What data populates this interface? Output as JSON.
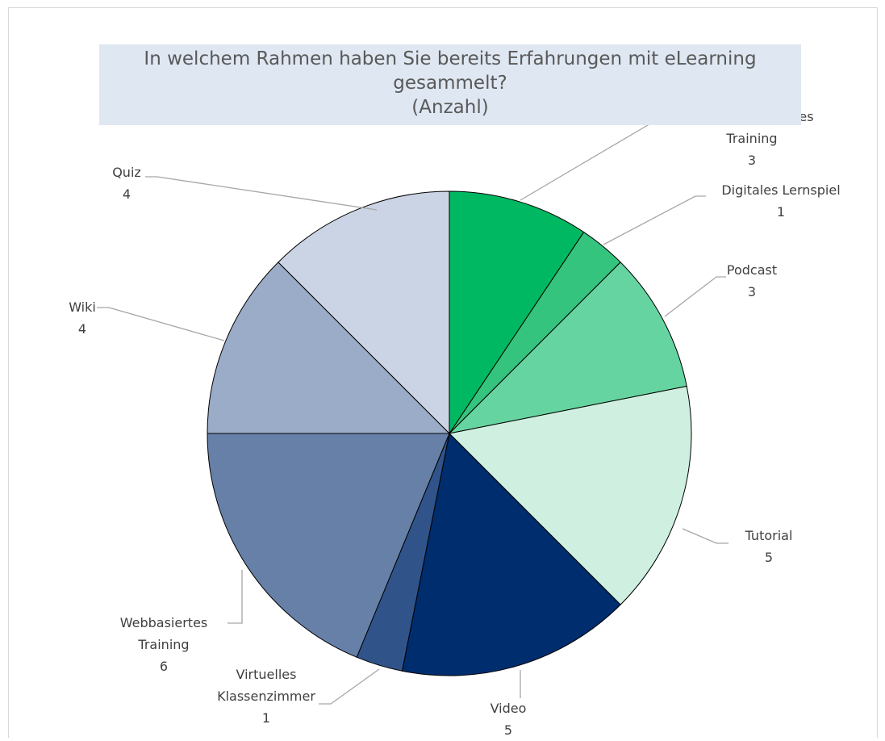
{
  "chart_data": {
    "type": "pie",
    "title": "In welchem Rahmen haben Sie bereits Erfahrungen mit eLearning gesammelt?",
    "subtitle": "(Anzahl)",
    "categories": [
      "Computerbasiertes Training",
      "Digitales Lernspiel",
      "Podcast",
      "Tutorial",
      "Video",
      "Virtuelles Klassenzimmer",
      "Webbasiertes Training",
      "Wiki",
      "Quiz"
    ],
    "values": [
      3,
      1,
      3,
      5,
      5,
      1,
      6,
      4,
      4
    ],
    "colors": [
      "#00b862",
      "#35c47e",
      "#66d4a0",
      "#cff0e0",
      "#002d6e",
      "#30548a",
      "#6680a8",
      "#9aacc8",
      "#cbd4e4"
    ]
  }
}
